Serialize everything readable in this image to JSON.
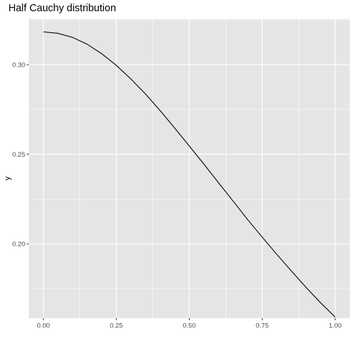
{
  "chart_data": {
    "type": "line",
    "title": "Half Cauchy distribution",
    "xlabel": "",
    "ylabel": "y",
    "xlim": [
      -0.05,
      1.05
    ],
    "ylim": [
      0.1585,
      0.3255
    ],
    "x_ticks": [
      {
        "value": 0.0,
        "label": "0.00"
      },
      {
        "value": 0.25,
        "label": "0.25"
      },
      {
        "value": 0.5,
        "label": "0.50"
      },
      {
        "value": 0.75,
        "label": "0.75"
      },
      {
        "value": 1.0,
        "label": "1.00"
      }
    ],
    "y_ticks": [
      {
        "value": 0.2,
        "label": "0.20"
      },
      {
        "value": 0.25,
        "label": "0.25"
      },
      {
        "value": 0.3,
        "label": "0.30"
      }
    ],
    "x_minor": [
      0.125,
      0.375,
      0.625,
      0.875
    ],
    "y_minor": [
      0.175,
      0.225,
      0.275,
      0.325
    ],
    "grid": true,
    "legend": "none",
    "colors": {
      "panel_background": "#e5e5e5",
      "grid": "#ffffff",
      "line": "#000000",
      "tick_text": "#4d4d4d"
    },
    "series": [
      {
        "x": [
          0.0,
          0.05,
          0.1,
          0.15,
          0.2,
          0.25,
          0.3,
          0.35,
          0.4,
          0.45,
          0.5,
          0.55,
          0.6,
          0.65,
          0.7,
          0.75,
          0.8,
          0.85,
          0.9,
          0.95,
          1.0
        ],
        "y": [
          0.3183,
          0.3175,
          0.3152,
          0.3114,
          0.3061,
          0.2996,
          0.292,
          0.2836,
          0.2744,
          0.2646,
          0.2546,
          0.2445,
          0.2341,
          0.2239,
          0.2135,
          0.2037,
          0.1941,
          0.1848,
          0.1757,
          0.1671,
          0.1591
        ]
      }
    ]
  }
}
